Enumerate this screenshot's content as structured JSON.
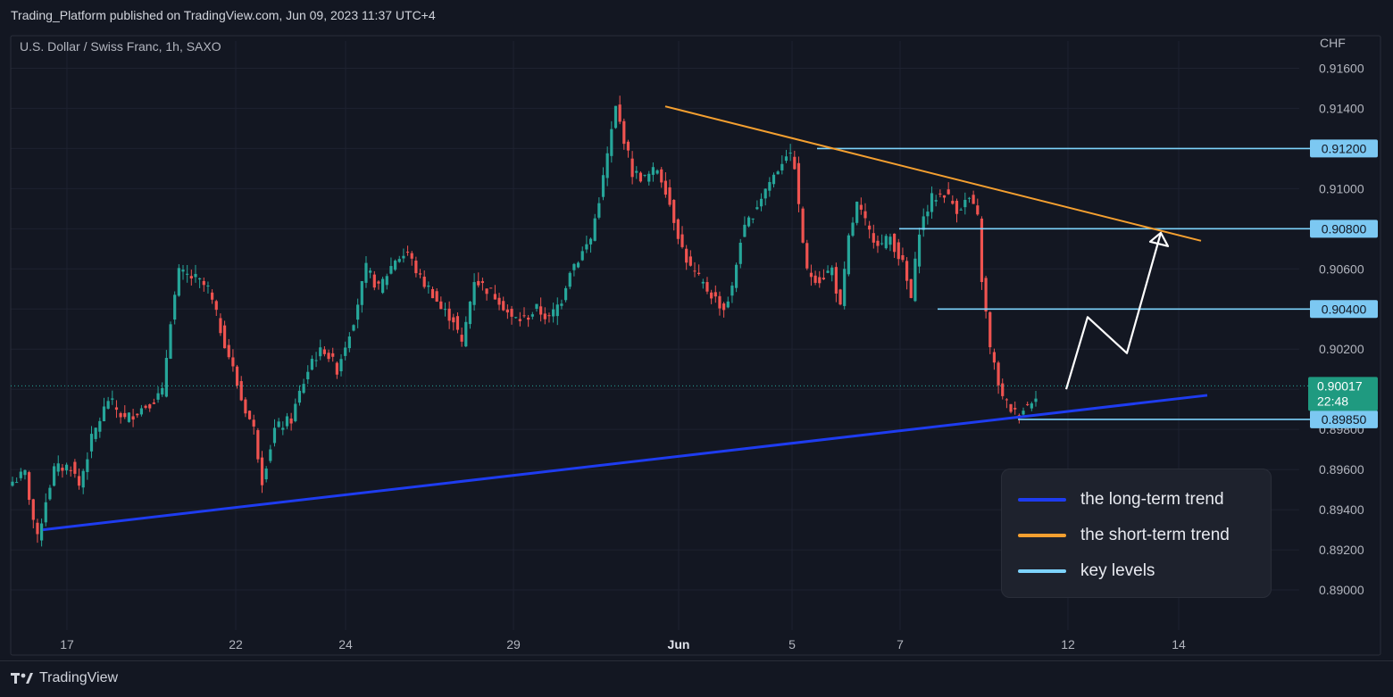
{
  "header": {
    "published_text": "Trading_Platform published on TradingView.com, Jun 09, 2023 11:37 UTC+4"
  },
  "symbol_label": "U.S. Dollar / Swiss Franc, 1h, SAXO",
  "currency_label": "CHF",
  "colors": {
    "background": "#131722",
    "up": "#26a69a",
    "down": "#ef5350",
    "long_trend": "#1e3cf0",
    "short_trend": "#f5a030",
    "key_level": "#7dd3fc",
    "price_badge": "#1f9a80"
  },
  "chart_data": {
    "type": "candlestick",
    "instrument": "U.S. Dollar / Swiss Franc",
    "timeframe": "1h",
    "y_axis": {
      "unit": "CHF",
      "ylim": [
        0.888,
        0.9178
      ],
      "ticks": [
        "0.91600",
        "0.91400",
        "0.91200",
        "0.91000",
        "0.90800",
        "0.90600",
        "0.90400",
        "0.90200",
        "0.90000",
        "0.89800",
        "0.89600",
        "0.89400",
        "0.89200",
        "0.89000"
      ],
      "tick_values": [
        0.916,
        0.914,
        0.912,
        0.91,
        0.908,
        0.906,
        0.904,
        0.902,
        0.9,
        0.898,
        0.896,
        0.894,
        0.892,
        0.89
      ]
    },
    "x_axis": {
      "ticks": [
        "17",
        "22",
        "24",
        "29",
        "Jun",
        "5",
        "7",
        "12",
        "14"
      ]
    },
    "price_path": [
      [
        0,
        0.8954
      ],
      [
        3,
        0.8958
      ],
      [
        5,
        0.8935
      ],
      [
        6,
        0.8925
      ],
      [
        8,
        0.8945
      ],
      [
        10,
        0.896
      ],
      [
        14,
        0.8962
      ],
      [
        16,
        0.8952
      ],
      [
        19,
        0.8975
      ],
      [
        23,
        0.8995
      ],
      [
        27,
        0.8985
      ],
      [
        32,
        0.8992
      ],
      [
        36,
        0.8998
      ],
      [
        38,
        0.9035
      ],
      [
        40,
        0.9058
      ],
      [
        44,
        0.9055
      ],
      [
        47,
        0.905
      ],
      [
        50,
        0.903
      ],
      [
        53,
        0.901
      ],
      [
        55,
        0.8995
      ],
      [
        58,
        0.898
      ],
      [
        60,
        0.8955
      ],
      [
        63,
        0.898
      ],
      [
        67,
        0.8985
      ],
      [
        69,
        0.8998
      ],
      [
        72,
        0.9015
      ],
      [
        75,
        0.902
      ],
      [
        78,
        0.901
      ],
      [
        82,
        0.9035
      ],
      [
        85,
        0.906
      ],
      [
        88,
        0.905
      ],
      [
        92,
        0.9065
      ],
      [
        95,
        0.9068
      ],
      [
        98,
        0.9055
      ],
      [
        101,
        0.9048
      ],
      [
        103,
        0.904
      ],
      [
        106,
        0.9035
      ],
      [
        108,
        0.9022
      ],
      [
        111,
        0.9055
      ],
      [
        114,
        0.905
      ],
      [
        117,
        0.9045
      ],
      [
        120,
        0.9035
      ],
      [
        123,
        0.9035
      ],
      [
        126,
        0.904
      ],
      [
        129,
        0.9035
      ],
      [
        132,
        0.9045
      ],
      [
        134,
        0.906
      ],
      [
        136,
        0.9065
      ],
      [
        139,
        0.9075
      ],
      [
        142,
        0.9105
      ],
      [
        145,
        0.914
      ],
      [
        147,
        0.9125
      ],
      [
        149,
        0.9108
      ],
      [
        152,
        0.9105
      ],
      [
        155,
        0.911
      ],
      [
        157,
        0.91
      ],
      [
        159,
        0.9085
      ],
      [
        161,
        0.907
      ],
      [
        163,
        0.906
      ],
      [
        166,
        0.9052
      ],
      [
        169,
        0.9045
      ],
      [
        171,
        0.904
      ],
      [
        173,
        0.905
      ],
      [
        175,
        0.9075
      ],
      [
        178,
        0.9088
      ],
      [
        181,
        0.91
      ],
      [
        184,
        0.911
      ],
      [
        186,
        0.9118
      ],
      [
        188,
        0.9112
      ],
      [
        189,
        0.909
      ],
      [
        191,
        0.9058
      ],
      [
        194,
        0.9055
      ],
      [
        197,
        0.906
      ],
      [
        199,
        0.904
      ],
      [
        201,
        0.9075
      ],
      [
        203,
        0.9092
      ],
      [
        206,
        0.9078
      ],
      [
        209,
        0.9072
      ],
      [
        211,
        0.9076
      ],
      [
        214,
        0.9062
      ],
      [
        216,
        0.9045
      ],
      [
        218,
        0.908
      ],
      [
        221,
        0.9095
      ],
      [
        224,
        0.9098
      ],
      [
        227,
        0.909
      ],
      [
        230,
        0.9095
      ],
      [
        232,
        0.9085
      ],
      [
        233,
        0.9055
      ],
      [
        235,
        0.902
      ],
      [
        238,
        0.8995
      ],
      [
        241,
        0.8988
      ],
      [
        244,
        0.8992
      ],
      [
        246,
        0.8998
      ]
    ],
    "horizontal_levels": [
      {
        "value": 0.912,
        "label": "0.91200"
      },
      {
        "value": 0.908,
        "label": "0.90800"
      },
      {
        "value": 0.904,
        "label": "0.90400"
      },
      {
        "value": 0.8985,
        "label": "0.89850"
      }
    ],
    "current_price": {
      "value": 0.90017,
      "label": "0.90017",
      "countdown": "22:48"
    },
    "long_term_trend": {
      "from": [
        0.893
      ],
      "to": [
        0.8997
      ]
    },
    "short_term_trend": {
      "from": [
        0.9141
      ],
      "to": [
        0.9074
      ]
    },
    "projection_path": [
      0.9,
      0.9036,
      0.9018,
      0.9078
    ],
    "legend": [
      {
        "label": "the long-term trend",
        "color": "#1e3cf0"
      },
      {
        "label": "the short-term trend",
        "color": "#f5a030"
      },
      {
        "label": "key levels",
        "color": "#7dd3fc"
      }
    ]
  },
  "footer": {
    "brand": "TradingView"
  }
}
